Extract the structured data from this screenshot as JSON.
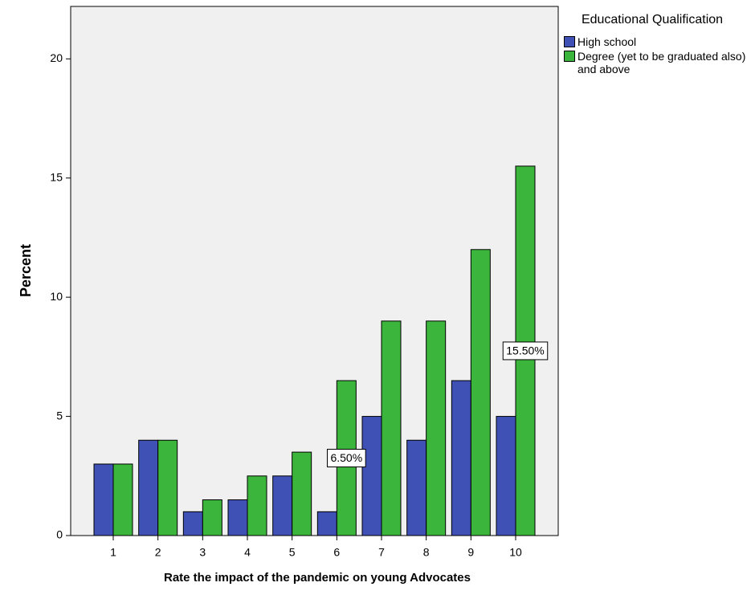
{
  "chart_data": {
    "type": "bar",
    "x_label": "Rate the impact of the pandemic on young Advocates",
    "y_label": "Percent",
    "legend_title": "Educational Qualification",
    "categories": [
      "1",
      "2",
      "3",
      "4",
      "5",
      "6",
      "7",
      "8",
      "9",
      "10"
    ],
    "series": [
      {
        "name": "High school",
        "color": "#3f51b5",
        "values": [
          3,
          4,
          1,
          1.5,
          2.5,
          1,
          5,
          4,
          6.5,
          5
        ]
      },
      {
        "name": "Degree (yet to be graduated also) and above",
        "color": "#3bb53b",
        "values": [
          3,
          4,
          1.5,
          2.5,
          3.5,
          6.5,
          9,
          9,
          12,
          15.5
        ],
        "value_labels": [
          null,
          null,
          null,
          null,
          null,
          "6.50%",
          null,
          null,
          null,
          "15.50%"
        ]
      }
    ],
    "ylim": [
      0,
      22.2
    ],
    "yticks": [
      0,
      5,
      10,
      15,
      20
    ],
    "legend": "right"
  }
}
